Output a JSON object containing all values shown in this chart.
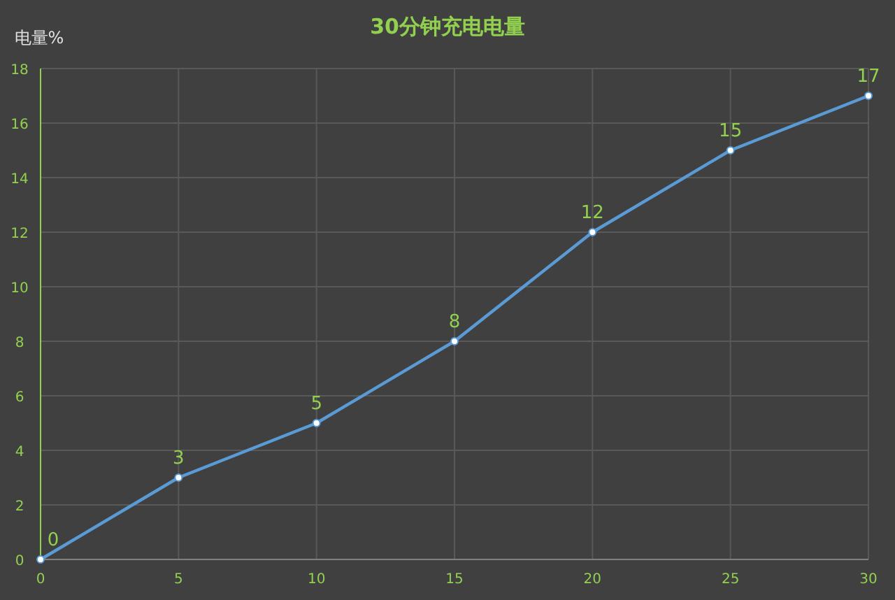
{
  "chart_data": {
    "type": "line",
    "title": "30分钟充电电量",
    "ylabel": "电量%",
    "x": [
      0,
      5,
      10,
      15,
      20,
      25,
      30
    ],
    "series": [
      {
        "color": "#5b9bd5",
        "values": [
          0,
          3,
          5,
          8,
          12,
          15,
          17
        ]
      }
    ],
    "xlim": [
      0,
      30
    ],
    "xticks": [
      0,
      5,
      10,
      15,
      20,
      25,
      30
    ],
    "ylim": [
      0,
      18
    ],
    "yticks": [
      0,
      2,
      4,
      6,
      8,
      10,
      12,
      14,
      16,
      18
    ],
    "grid": true,
    "marker": "circle",
    "line_style": "solid",
    "data_labels": true
  }
}
